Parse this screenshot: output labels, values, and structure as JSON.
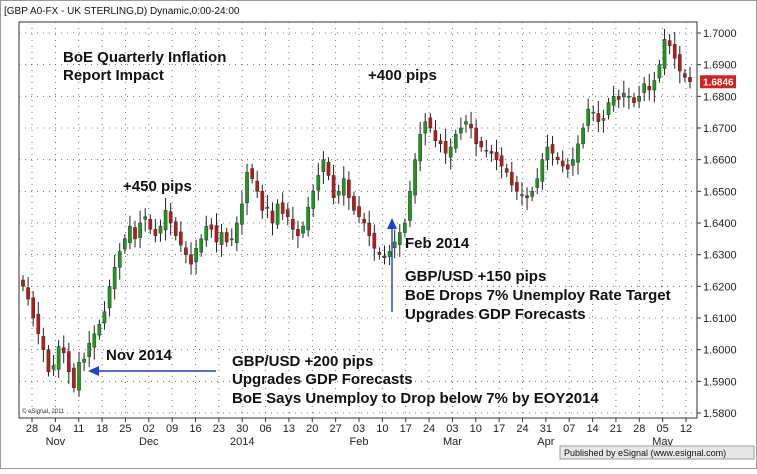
{
  "header": "[GBP A0-FX - UK STERLING,D) Dynamic,0:00-24:00",
  "footer": "Published by eSignal (www.esignal.com)",
  "copyright": "© eSignal, 2011",
  "colors": {
    "up": "#1a9c1a",
    "down": "#c01818",
    "wick": "#222222",
    "annotation_arrow": "#1f3fd0",
    "price_box": "#d42020"
  },
  "chart_data": {
    "type": "candlestick",
    "title": "",
    "ylim": [
      1.58,
      1.7
    ],
    "y_ticks": [
      "1.7000",
      "1.6900",
      "1.6800",
      "1.6700",
      "1.6600",
      "1.6500",
      "1.6400",
      "1.6300",
      "1.6200",
      "1.6100",
      "1.6000",
      "1.5900",
      "1.5800"
    ],
    "x_day_labels": [
      "28",
      "04",
      "11",
      "18",
      "25",
      "02",
      "09",
      "16",
      "23",
      "30",
      "06",
      "13",
      "20",
      "27",
      "03",
      "10",
      "17",
      "24",
      "03",
      "10",
      "17",
      "24",
      "31",
      "07",
      "14",
      "21",
      "28",
      "05",
      "12"
    ],
    "x_month_labels": [
      {
        "label": "Nov",
        "at": 1
      },
      {
        "label": "Dec",
        "at": 5
      },
      {
        "label": "2014",
        "at": 9
      },
      {
        "label": "Feb",
        "at": 14
      },
      {
        "label": "Mar",
        "at": 18
      },
      {
        "label": "Apr",
        "at": 22
      },
      {
        "label": "May",
        "at": 27
      }
    ],
    "last_price": "1.6846",
    "grid": true,
    "series_close": [
      1.62,
      1.616,
      1.61,
      1.605,
      1.6,
      1.593,
      1.595,
      1.601,
      1.599,
      1.593,
      1.588,
      1.596,
      1.597,
      1.602,
      1.605,
      1.608,
      1.612,
      1.62,
      1.626,
      1.631,
      1.635,
      1.639,
      1.635,
      1.64,
      1.642,
      1.638,
      1.636,
      1.639,
      1.644,
      1.64,
      1.636,
      1.633,
      1.63,
      1.627,
      1.632,
      1.635,
      1.639,
      1.638,
      1.634,
      1.637,
      1.634,
      1.635,
      1.64,
      1.646,
      1.656,
      1.654,
      1.65,
      1.644,
      1.645,
      1.64,
      1.646,
      1.643,
      1.642,
      1.638,
      1.636,
      1.639,
      1.645,
      1.65,
      1.655,
      1.66,
      1.655,
      1.648,
      1.65,
      1.654,
      1.648,
      1.644,
      1.642,
      1.64,
      1.636,
      1.632,
      1.63,
      1.629,
      1.631,
      1.634,
      1.637,
      1.64,
      1.65,
      1.66,
      1.668,
      1.672,
      1.67,
      1.666,
      1.665,
      1.662,
      1.664,
      1.668,
      1.67,
      1.672,
      1.67,
      1.665,
      1.664,
      1.663,
      1.662,
      1.66,
      1.658,
      1.656,
      1.652,
      1.65,
      1.649,
      1.648,
      1.65,
      1.654,
      1.66,
      1.664,
      1.662,
      1.66,
      1.658,
      1.657,
      1.66,
      1.665,
      1.67,
      1.676,
      1.675,
      1.672,
      1.673,
      1.678,
      1.68,
      1.679,
      1.681,
      1.68,
      1.678,
      1.68,
      1.684,
      1.682,
      1.685,
      1.69,
      1.698,
      1.696,
      1.692,
      1.688,
      1.686,
      1.6846
    ]
  },
  "annotations": {
    "title_line1": "BoE Quarterly Inflation",
    "title_line2": "Report Impact",
    "pips_450": "+450 pips",
    "pips_400": "+400 pips",
    "nov": "Nov 2014",
    "nov_text1": "GBP/USD +200 pips",
    "nov_text2": "Upgrades GDP Forecasts",
    "nov_text3": "BoE Says Unemploy to Drop below 7% by EOY2014",
    "feb": "Feb 2014",
    "feb_text1": "GBP/USD +150 pips",
    "feb_text2": "BoE Drops 7% Unemploy Rate Target",
    "feb_text3": "Upgrades GDP Forecasts"
  }
}
